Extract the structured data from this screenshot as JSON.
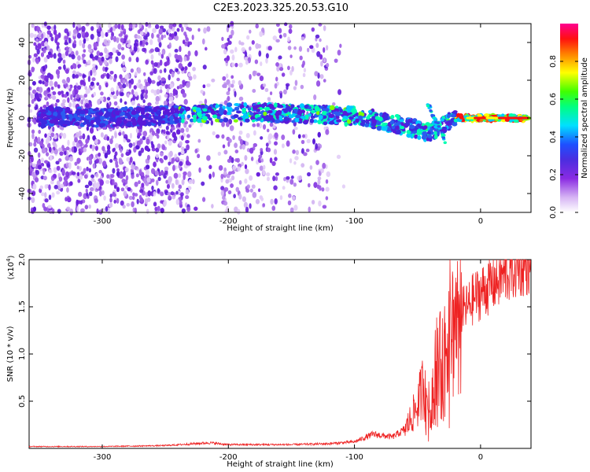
{
  "title": "C2E3.2023.325.20.53.G10",
  "chart_data": [
    {
      "type": "heatmap",
      "title": "C2E3.2023.325.20.53.G10",
      "xlabel": "Height of straight line (km)",
      "ylabel": "Frequency (Hz)",
      "xlim": [
        -358,
        40
      ],
      "ylim": [
        -50,
        50
      ],
      "x_ticks": [
        -300,
        -200,
        -100,
        0
      ],
      "x_tick_labels": [
        "-300",
        "-200",
        "-100",
        "0"
      ],
      "y_ticks": [
        -40,
        -20,
        0,
        20,
        40
      ],
      "y_tick_labels": [
        "-40",
        "-20",
        "0",
        "20",
        "40"
      ],
      "colorbar": {
        "label": "Normalized spectral amplitude",
        "range": [
          0,
          1
        ],
        "ticks": [
          0.0,
          0.2,
          0.4,
          0.6,
          0.8
        ],
        "tick_labels": [
          "0.0",
          "0.2",
          "0.4",
          "0.6",
          "0.8"
        ],
        "colormap": "rainbow (white-violet-blue-cyan-green-yellow-red-magenta)"
      },
      "features": {
        "signal_trace": [
          {
            "x": -345,
            "y": 1
          },
          {
            "x": -300,
            "y": 0
          },
          {
            "x": -230,
            "y": 2
          },
          {
            "x": -180,
            "y": 3
          },
          {
            "x": -140,
            "y": 2
          },
          {
            "x": -100,
            "y": 1
          },
          {
            "x": -75,
            "y": -2
          },
          {
            "x": -55,
            "y": -5
          },
          {
            "x": -40,
            "y": -8
          },
          {
            "x": -30,
            "y": -3
          },
          {
            "x": -20,
            "y": 0
          },
          {
            "x": 0,
            "y": 0
          },
          {
            "x": 40,
            "y": 0
          }
        ],
        "gap_regions_x": [
          [
            -230,
            -205
          ],
          [
            -120,
            -88
          ]
        ]
      }
    },
    {
      "type": "line",
      "xlabel": "Height of straight line (km)",
      "ylabel": "SNR (10 * v/v)",
      "multiplier_label": "(x10",
      "multiplier_exp": "4",
      "multiplier_close": ")",
      "xlim": [
        -358,
        40
      ],
      "ylim": [
        0,
        2.0
      ],
      "x_ticks": [
        -300,
        -200,
        -100,
        0
      ],
      "x_tick_labels": [
        "-300",
        "-200",
        "-100",
        "0"
      ],
      "y_ticks": [
        0.5,
        1.0,
        1.5,
        2.0
      ],
      "y_tick_labels": [
        "0.5",
        "1.0",
        "1.5",
        "2.0"
      ],
      "series": [
        {
          "color": "#ee2222",
          "x": [
            -358,
            -300,
            -250,
            -215,
            -200,
            -150,
            -120,
            -100,
            -85,
            -70,
            -60,
            -50,
            -45,
            -40,
            -35,
            -30,
            -25,
            -20,
            -15,
            -10,
            -5,
            0,
            10,
            20,
            30,
            40
          ],
          "y": [
            0.02,
            0.02,
            0.03,
            0.06,
            0.04,
            0.04,
            0.05,
            0.07,
            0.15,
            0.12,
            0.2,
            0.45,
            0.7,
            0.4,
            1.0,
            0.9,
            1.3,
            1.4,
            1.45,
            1.5,
            1.6,
            1.65,
            1.75,
            1.85,
            1.93,
            1.98
          ]
        }
      ]
    }
  ]
}
